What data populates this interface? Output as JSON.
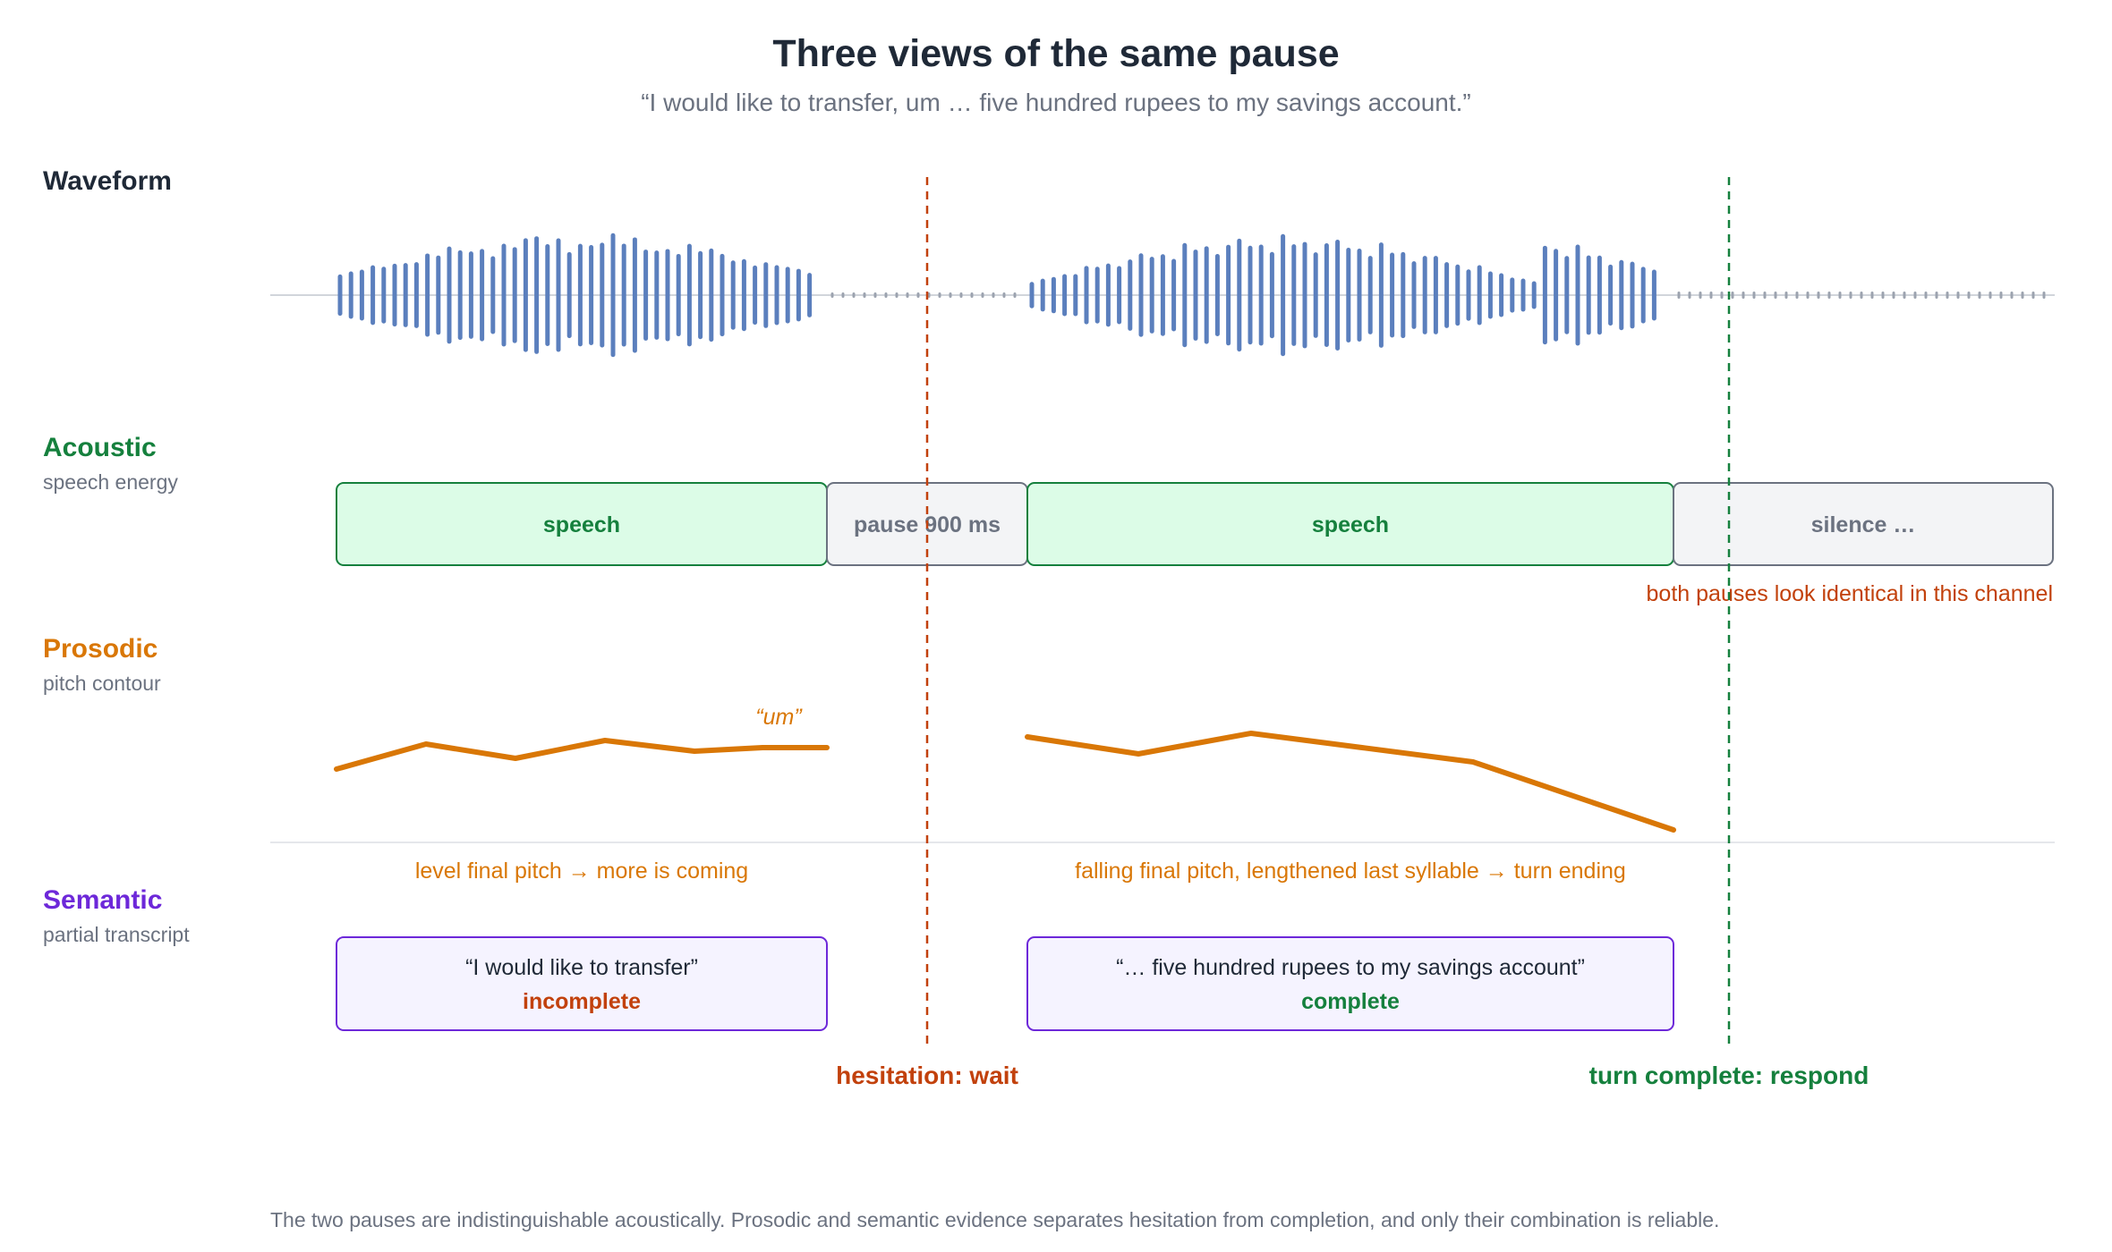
{
  "title": "Three views of the same pause",
  "subtitle": "“I would like to transfer, um … five hundred rupees to my savings account.”",
  "colors": {
    "waveform": "#5b7fbd",
    "silence": "#9ca3af",
    "acoustic": "#15803d",
    "prosodic": "#d97706",
    "semantic": "#6d28d9",
    "hesitation": "#c2410c",
    "complete": "#15803d",
    "speech_fill": "#dcfce7",
    "silence_fill": "#f3f4f6",
    "semantic_fill": "#f5f3ff"
  },
  "rows": {
    "waveform": {
      "label": "Waveform"
    },
    "acoustic": {
      "label": "Acoustic",
      "sub": "speech energy"
    },
    "prosodic": {
      "label": "Prosodic",
      "sub": "pitch contour"
    },
    "semantic": {
      "label": "Semantic",
      "sub": "partial transcript"
    }
  },
  "acoustic": {
    "segments": [
      {
        "label": "speech",
        "kind": "speech"
      },
      {
        "label": "pause 900 ms",
        "kind": "pause"
      },
      {
        "label": "speech",
        "kind": "speech"
      },
      {
        "label": "silence …",
        "kind": "pause"
      }
    ],
    "note": "both pauses look identical in this channel"
  },
  "prosodic": {
    "um_label": "“um”",
    "note_1": "level final pitch → more is coming",
    "note_2": "falling final pitch, lengthened last syllable → turn ending"
  },
  "semantic": {
    "box_1": {
      "quote": "“I would like to transfer”",
      "status": "incomplete"
    },
    "box_2": {
      "quote": "“… five hundred rupees to my savings account”",
      "status": "complete"
    }
  },
  "markers": {
    "hesitation": "hesitation: wait",
    "complete": "turn complete: respond"
  },
  "caption": "The two pauses are indistinguishable acoustically. Prosodic and semantic evidence separates hesitation from completion, and only their combination is reliable."
}
